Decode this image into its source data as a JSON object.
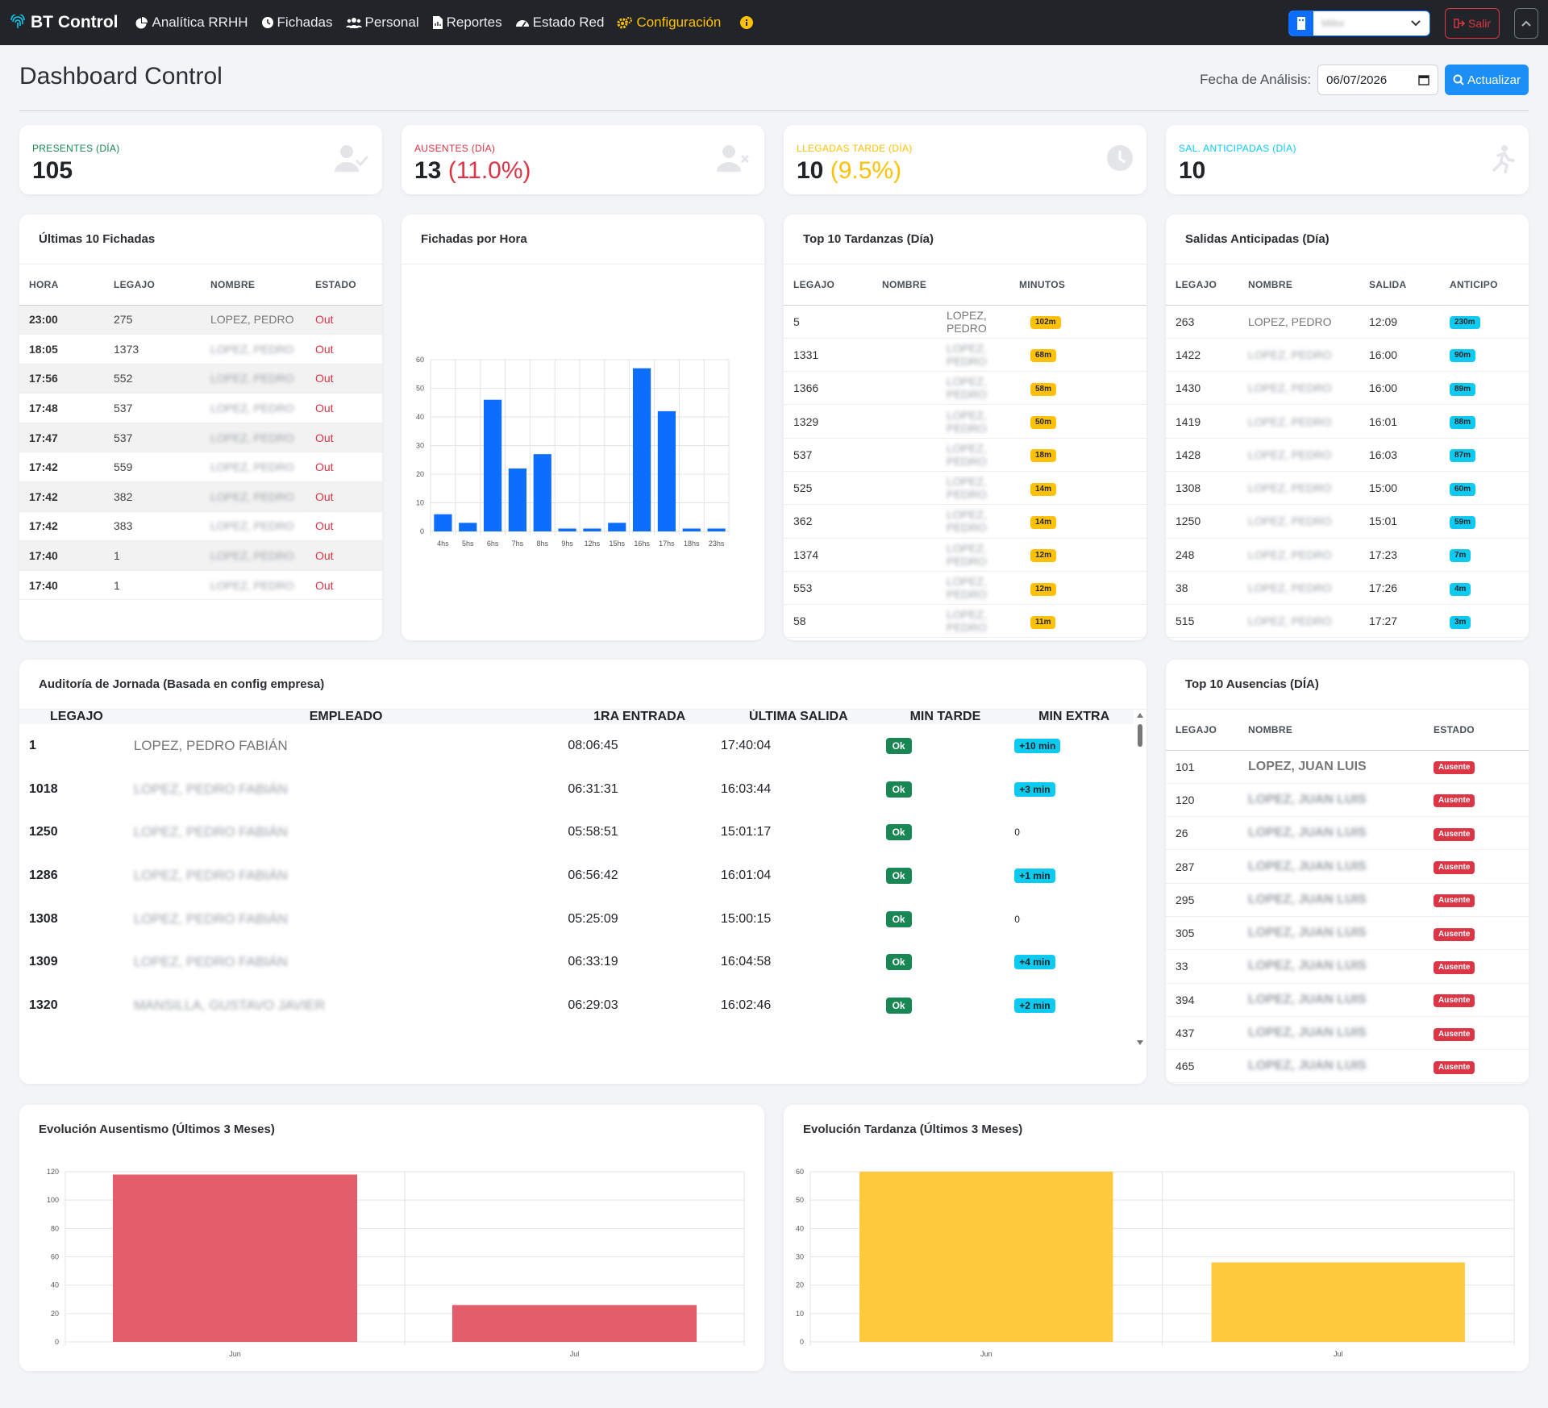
{
  "nav": {
    "brand": "BT Control",
    "items": [
      "Analítica RRHH",
      "Fichadas",
      "Personal",
      "Reportes",
      "Estado Red",
      "Configuración"
    ],
    "tenant": "Millor",
    "salir": "Salir"
  },
  "header": {
    "title": "Dashboard Control",
    "date_label": "Fecha de Análisis:",
    "date": "06/07/2026",
    "refresh": "Actualizar"
  },
  "kpis": [
    {
      "label": "PRESENTES (DÍA)",
      "value": "105",
      "pct": "",
      "color": "#198754",
      "icon": "user-check-icon"
    },
    {
      "label": "AUSENTES (DÍA)",
      "value": "13",
      "pct": "(11.0%)",
      "color": "#dc3545",
      "icon": "user-x-icon"
    },
    {
      "label": "LLEGADAS TARDE (DÍA)",
      "value": "10",
      "pct": "(9.5%)",
      "color": "#ffc107",
      "icon": "clock-icon"
    },
    {
      "label": "SAL. ANTICIPADAS (DÍA)",
      "value": "10",
      "pct": "",
      "color": "#0dcaf0",
      "icon": "running-icon"
    }
  ],
  "fichadas": {
    "title": "Últimas 10 Fichadas",
    "cols": [
      "HORA",
      "LEGAJO",
      "NOMBRE",
      "ESTADO"
    ],
    "rows": [
      [
        "23:00",
        "275",
        "LOPEZ, PEDRO",
        "Out"
      ],
      [
        "18:05",
        "1373",
        "LOPEZ, PEDRO",
        "Out"
      ],
      [
        "17:56",
        "552",
        "LOPEZ, PEDRO",
        "Out"
      ],
      [
        "17:48",
        "537",
        "LOPEZ, PEDRO",
        "Out"
      ],
      [
        "17:47",
        "537",
        "LOPEZ, PEDRO",
        "Out"
      ],
      [
        "17:42",
        "559",
        "LOPEZ, PEDRO",
        "Out"
      ],
      [
        "17:42",
        "382",
        "LOPEZ, PEDRO",
        "Out"
      ],
      [
        "17:42",
        "383",
        "LOPEZ, PEDRO",
        "Out"
      ],
      [
        "17:40",
        "1",
        "LOPEZ, PEDRO",
        "Out"
      ],
      [
        "17:40",
        "1",
        "LOPEZ, PEDRO",
        "Out"
      ]
    ]
  },
  "hora_chart_title": "Fichadas por Hora",
  "tardanzas": {
    "title": "Top 10 Tardanzas (Día)",
    "cols": [
      "LEGAJO",
      "NOMBRE",
      "MINUTOS"
    ],
    "rows": [
      [
        "5",
        "LOPEZ, PEDRO",
        "102m"
      ],
      [
        "1331",
        "LOPEZ, PEDRO",
        "68m"
      ],
      [
        "1366",
        "LOPEZ, PEDRO",
        "58m"
      ],
      [
        "1329",
        "LOPEZ, PEDRO",
        "50m"
      ],
      [
        "537",
        "LOPEZ, PEDRO",
        "18m"
      ],
      [
        "525",
        "LOPEZ, PEDRO",
        "14m"
      ],
      [
        "362",
        "LOPEZ, PEDRO",
        "14m"
      ],
      [
        "1374",
        "LOPEZ, PEDRO",
        "12m"
      ],
      [
        "553",
        "LOPEZ, PEDRO",
        "12m"
      ],
      [
        "58",
        "LOPEZ, PEDRO",
        "11m"
      ]
    ]
  },
  "salidas": {
    "title": "Salidas Anticipadas (Día)",
    "cols": [
      "LEGAJO",
      "NOMBRE",
      "SALIDA",
      "ANTICIPO"
    ],
    "rows": [
      [
        "263",
        "LOPEZ, PEDRO",
        "12:09",
        "230m"
      ],
      [
        "1422",
        "LOPEZ, PEDRO",
        "16:00",
        "90m"
      ],
      [
        "1430",
        "LOPEZ, PEDRO",
        "16:00",
        "89m"
      ],
      [
        "1419",
        "LOPEZ, PEDRO",
        "16:01",
        "88m"
      ],
      [
        "1428",
        "LOPEZ, PEDRO",
        "16:03",
        "87m"
      ],
      [
        "1308",
        "LOPEZ, PEDRO",
        "15:00",
        "60m"
      ],
      [
        "1250",
        "LOPEZ, PEDRO",
        "15:01",
        "59m"
      ],
      [
        "248",
        "LOPEZ, PEDRO",
        "17:23",
        "7m"
      ],
      [
        "38",
        "LOPEZ, PEDRO",
        "17:26",
        "4m"
      ],
      [
        "515",
        "LOPEZ, PEDRO",
        "17:27",
        "3m"
      ]
    ]
  },
  "auditoria": {
    "title": "Auditoría de Jornada (Basada en config empresa)",
    "cols": [
      "LEGAJO",
      "EMPLEADO",
      "1RA ENTRADA",
      "ÚLTIMA SALIDA",
      "MIN TARDE",
      "MIN EXTRA"
    ],
    "rows": [
      [
        "1",
        "LOPEZ, PEDRO FABIÁN",
        "08:06:45",
        "17:40:04",
        "Ok",
        "+10 min"
      ],
      [
        "1018",
        "LOPEZ, PEDRO FABIÁN",
        "06:31:31",
        "16:03:44",
        "Ok",
        "+3 min"
      ],
      [
        "1250",
        "LOPEZ, PEDRO FABIÁN",
        "05:58:51",
        "15:01:17",
        "Ok",
        "0"
      ],
      [
        "1286",
        "LOPEZ, PEDRO FABIÁN",
        "06:56:42",
        "16:01:04",
        "Ok",
        "+1 min"
      ],
      [
        "1308",
        "LOPEZ, PEDRO FABIÁN",
        "05:25:09",
        "15:00:15",
        "Ok",
        "0"
      ],
      [
        "1309",
        "LOPEZ, PEDRO FABIÁN",
        "06:33:19",
        "16:04:58",
        "Ok",
        "+4 min"
      ],
      [
        "1320",
        "MANSILLA, GUSTAVO JAVIER",
        "06:29:03",
        "16:02:46",
        "Ok",
        "+2 min"
      ]
    ]
  },
  "ausencias": {
    "title": "Top 10 Ausencias (DÍA)",
    "cols": [
      "LEGAJO",
      "NOMBRE",
      "ESTADO"
    ],
    "rows": [
      [
        "101",
        "LOPEZ, JUAN LUIS",
        "Ausente"
      ],
      [
        "120",
        "LOPEZ, JUAN LUIS",
        "Ausente"
      ],
      [
        "26",
        "LOPEZ, JUAN LUIS",
        "Ausente"
      ],
      [
        "287",
        "LOPEZ, JUAN LUIS",
        "Ausente"
      ],
      [
        "295",
        "LOPEZ, JUAN LUIS",
        "Ausente"
      ],
      [
        "305",
        "LOPEZ, JUAN LUIS",
        "Ausente"
      ],
      [
        "33",
        "LOPEZ, JUAN LUIS",
        "Ausente"
      ],
      [
        "394",
        "LOPEZ, JUAN LUIS",
        "Ausente"
      ],
      [
        "437",
        "LOPEZ, JUAN LUIS",
        "Ausente"
      ],
      [
        "465",
        "LOPEZ, JUAN LUIS",
        "Ausente"
      ]
    ]
  },
  "evo_aus_title": "Evolución Ausentismo (Últimos 3 Meses)",
  "evo_tar_title": "Evolución Tardanza (Últimos 3 Meses)",
  "chart_data": [
    {
      "type": "bar",
      "title": "Fichadas por Hora",
      "categories": [
        "4hs",
        "5hs",
        "6hs",
        "7hs",
        "8hs",
        "9hs",
        "12hs",
        "15hs",
        "16hs",
        "17hs",
        "18hs",
        "23hs"
      ],
      "values": [
        6,
        3,
        46,
        22,
        27,
        1,
        1,
        3,
        57,
        42,
        1,
        1
      ],
      "ylim": [
        0,
        60
      ],
      "yticks": [
        0,
        10,
        20,
        30,
        40,
        50,
        60
      ],
      "color": "#0d6efd"
    },
    {
      "type": "bar",
      "title": "Evolución Ausentismo (Últimos 3 Meses)",
      "categories": [
        "Jun",
        "Jul"
      ],
      "values": [
        118,
        26
      ],
      "ylim": [
        0,
        120
      ],
      "yticks": [
        0,
        20,
        40,
        60,
        80,
        100,
        120
      ],
      "color": "#e35d6a"
    },
    {
      "type": "bar",
      "title": "Evolución Tardanza (Últimos 3 Meses)",
      "categories": [
        "Jun",
        "Jul"
      ],
      "values": [
        60,
        28
      ],
      "ylim": [
        0,
        60
      ],
      "yticks": [
        0,
        10,
        20,
        30,
        40,
        50,
        60
      ],
      "color": "#ffc93c"
    }
  ]
}
